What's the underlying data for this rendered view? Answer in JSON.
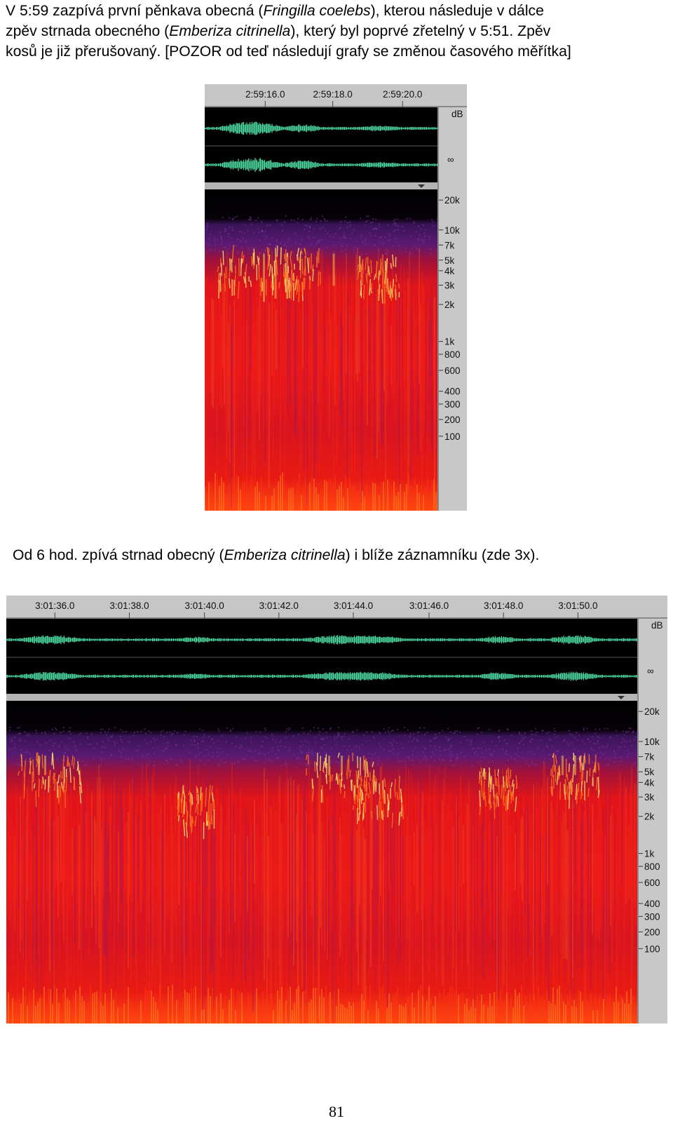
{
  "paragraph1": {
    "line1_a": "V 5:59 zazpívá první pěnkava obecná (",
    "line1_species": "Fringilla coelebs",
    "line1_b": "), kterou následuje v dálce",
    "line2_a": "zpěv strnada obecného (",
    "line2_species": "Emberiza citrinella",
    "line2_b": "), který byl poprvé zřetelný v 5:51. Zpěv",
    "line3": "kosů je již přerušovaný. [POZOR od teď následují grafy se změnou časového měřítka]"
  },
  "figure1": {
    "time_ticks": [
      "2:59:16.0",
      "2:59:18.0",
      "2:59:20.0"
    ],
    "db_label": "dB",
    "inf_label": "∞",
    "freq_ticks": [
      "20k",
      "10k",
      "7k",
      "5k",
      "4k",
      "3k",
      "2k",
      "1k",
      "800",
      "600",
      "400",
      "300",
      "200",
      "100"
    ]
  },
  "paragraph2": {
    "text_a": "Od 6 hod. zpívá strnad obecný (",
    "species": "Emberiza citrinella",
    "text_b": ") i blíže záznamníku (zde 3x)."
  },
  "figure2": {
    "time_ticks": [
      "3:01:36.0",
      "3:01:38.0",
      "3:01:40.0",
      "3:01:42.0",
      "3:01:44.0",
      "3:01:46.0",
      "3:01:48.0",
      "3:01:50.0"
    ],
    "db_label": "dB",
    "inf_label": "∞",
    "freq_ticks": [
      "20k",
      "10k",
      "7k",
      "5k",
      "4k",
      "3k",
      "2k",
      "1k",
      "800",
      "600",
      "400",
      "300",
      "200",
      "100"
    ]
  },
  "colors": {
    "spectrogram_hot": "#ff1a10",
    "spectrogram_warm": "#ffd050",
    "spectrogram_cool": "#4a1a6e",
    "waveform": "#4cd6a0",
    "panel_gray": "#c8c8c8"
  },
  "page_number": "81"
}
